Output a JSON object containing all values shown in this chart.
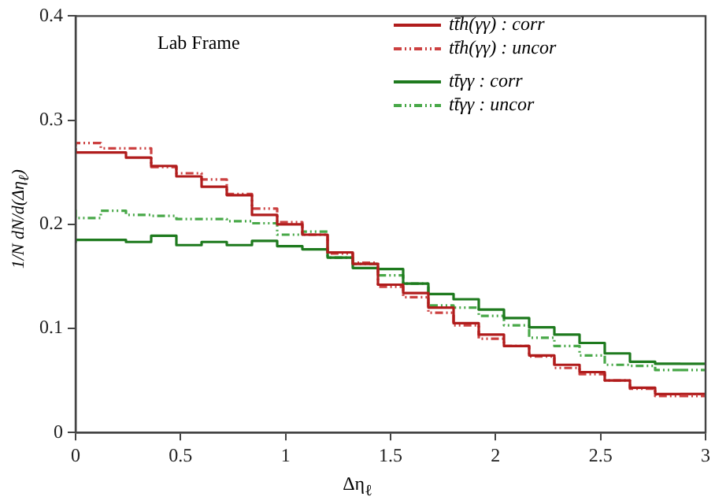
{
  "chart_data": {
    "type": "step",
    "xlabel": "Δη$_{ℓ}$",
    "ylabel": "1/N dN/d(Δη$_{ℓ}$)",
    "annotations": [
      "Lab Frame"
    ],
    "x": [
      0,
      0.12,
      0.24,
      0.36,
      0.48,
      0.6,
      0.72,
      0.84,
      0.96,
      1.08,
      1.2,
      1.32,
      1.44,
      1.56,
      1.68,
      1.8,
      1.92,
      2.04,
      2.16,
      2.28,
      2.4,
      2.52,
      2.64,
      2.76,
      2.88
    ],
    "series": [
      {
        "name": "tt̄h(γγ) : corr",
        "color": "#b01c1c",
        "line_style": "solid",
        "values": [
          0.273,
          0.269,
          0.269,
          0.264,
          0.256,
          0.246,
          0.236,
          0.228,
          0.209,
          0.2,
          0.19,
          0.173,
          0.162,
          0.142,
          0.134,
          0.12,
          0.105,
          0.094,
          0.083,
          0.074,
          0.065,
          0.058,
          0.05,
          0.043,
          0.037
        ]
      },
      {
        "name": "tt̄h(γγ) : uncor",
        "color": "#cc4040",
        "line_style": "dashed",
        "values": [
          0.275,
          0.278,
          0.273,
          0.273,
          0.255,
          0.249,
          0.243,
          0.229,
          0.215,
          0.202,
          0.19,
          0.172,
          0.163,
          0.14,
          0.13,
          0.115,
          0.103,
          0.09,
          0.083,
          0.073,
          0.062,
          0.056,
          0.05,
          0.042,
          0.035
        ]
      },
      {
        "name": "tt̄γγ : corr",
        "color": "#1e7a1e",
        "line_style": "solid",
        "values": [
          0.182,
          0.185,
          0.185,
          0.183,
          0.189,
          0.18,
          0.183,
          0.18,
          0.184,
          0.179,
          0.176,
          0.168,
          0.158,
          0.157,
          0.143,
          0.133,
          0.128,
          0.118,
          0.11,
          0.101,
          0.094,
          0.086,
          0.076,
          0.068,
          0.066
        ]
      },
      {
        "name": "tt̄γγ : uncor",
        "color": "#48a848",
        "line_style": "dashed",
        "values": [
          0.214,
          0.206,
          0.213,
          0.209,
          0.208,
          0.205,
          0.205,
          0.203,
          0.201,
          0.19,
          0.193,
          0.168,
          0.162,
          0.151,
          0.143,
          0.122,
          0.12,
          0.112,
          0.103,
          0.091,
          0.083,
          0.074,
          0.065,
          0.064,
          0.06
        ]
      }
    ],
    "xlim": [
      0,
      3
    ],
    "xticks": [
      0,
      0.5,
      1,
      1.5,
      2,
      2.5,
      3
    ],
    "ylim": [
      0,
      0.4
    ],
    "yticks": [
      0,
      0.1,
      0.2,
      0.3,
      0.4
    ],
    "grid": false,
    "legend": "top right"
  }
}
